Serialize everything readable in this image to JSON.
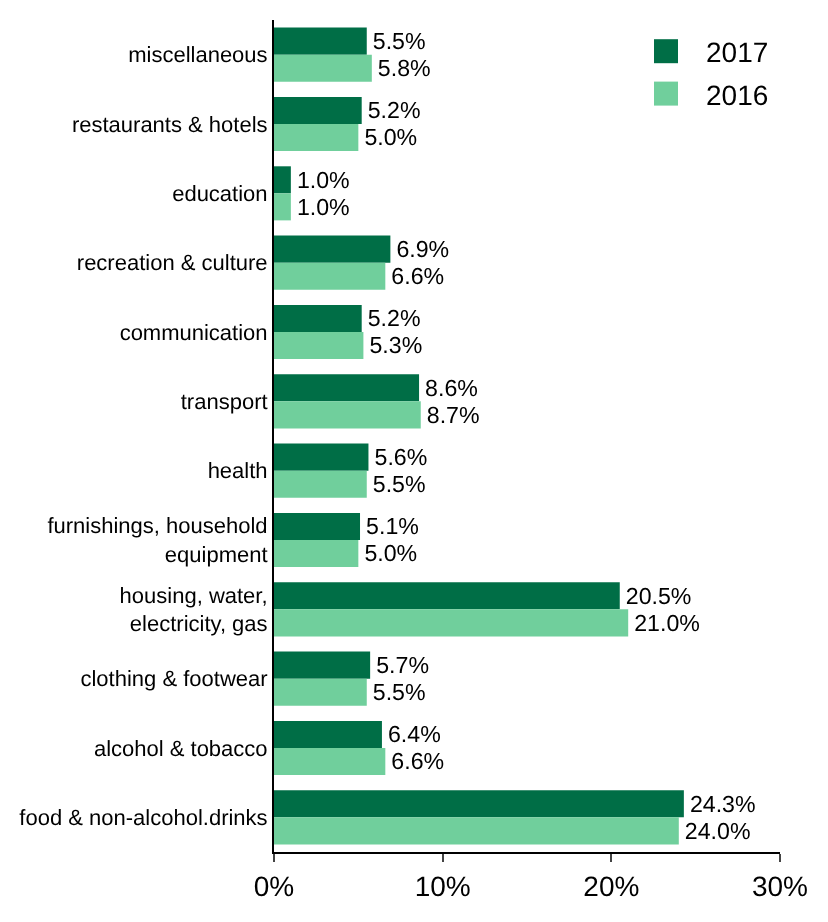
{
  "chart_data": {
    "type": "bar",
    "orientation": "horizontal",
    "categories": [
      "miscellaneous",
      "restaurants & hotels",
      "education",
      "recreation & culture",
      "communication",
      "transport",
      "health",
      "furnishings, household equipment",
      "housing, water, electricity, gas",
      "clothing & footwear",
      "alcohol & tobacco",
      "food & non-alcohol.drinks"
    ],
    "series": [
      {
        "name": "2017",
        "color": "#006e46",
        "values": [
          5.5,
          5.2,
          1.0,
          6.9,
          5.2,
          8.6,
          5.6,
          5.1,
          20.5,
          5.7,
          6.4,
          24.3
        ],
        "value_labels": [
          "5.5%",
          "5.2%",
          "1.0%",
          "6.9%",
          "5.2%",
          "8.6%",
          "5.6%",
          "5.1%",
          "20.5%",
          "5.7%",
          "6.4%",
          "24.3%"
        ]
      },
      {
        "name": "2016",
        "color": "#70cf9c",
        "values": [
          5.8,
          5.0,
          1.0,
          6.6,
          5.3,
          8.7,
          5.5,
          5.0,
          21.0,
          5.5,
          6.6,
          24.0
        ],
        "value_labels": [
          "5.8%",
          "5.0%",
          "1.0%",
          "6.6%",
          "5.3%",
          "8.7%",
          "5.5%",
          "5.0%",
          "21.0%",
          "5.5%",
          "6.6%",
          "24.0%"
        ]
      }
    ],
    "xlim": [
      0,
      30
    ],
    "xticks": [
      {
        "value": 0,
        "label": "0%"
      },
      {
        "value": 10,
        "label": "10%"
      },
      {
        "value": 20,
        "label": "20%"
      },
      {
        "value": 30,
        "label": "30%"
      }
    ],
    "legend": "top right"
  }
}
